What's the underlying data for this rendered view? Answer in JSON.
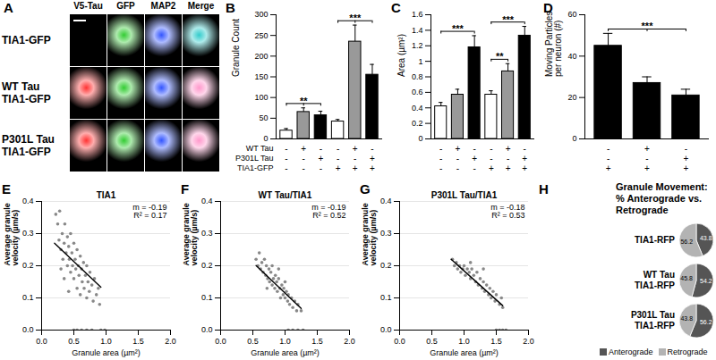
{
  "panel_a": {
    "panel": "A",
    "columns": [
      "V5-Tau",
      "GFP",
      "MAP2",
      "Merge"
    ],
    "rows": [
      "TIA1-GFP",
      "WT Tau TIA1-GFP",
      "P301L Tau TIA1-GFP"
    ]
  },
  "chart_data": [
    {
      "panel": "B",
      "type": "bar",
      "y_label": "Granule Count",
      "categories": [
        null,
        null,
        null,
        null,
        null,
        null
      ],
      "values": [
        20,
        65,
        57,
        42,
        235,
        155
      ],
      "errors": [
        5,
        10,
        10,
        5,
        40,
        25
      ],
      "colors": [
        "#ffffff",
        "#999999",
        "#000000",
        "#ffffff",
        "#999999",
        "#000000"
      ],
      "ylim": [
        0,
        300
      ],
      "yticks": [
        0,
        50,
        100,
        150,
        200,
        250,
        300
      ],
      "tick_labels": "y",
      "conditions": [
        {
          "name": "WT Tau",
          "values": [
            "-",
            "+",
            "-",
            "-",
            "+",
            "-"
          ]
        },
        {
          "name": "P301L Tau",
          "values": [
            "-",
            "-",
            "+",
            "-",
            "-",
            "+"
          ]
        },
        {
          "name": "TIA1-GFP",
          "values": [
            "-",
            "-",
            "-",
            "+",
            "+",
            "+"
          ]
        }
      ],
      "annotations": [
        {
          "text": "**",
          "from": 0,
          "to": [
            1,
            2
          ]
        },
        {
          "text": "***",
          "from": 3,
          "to": [
            4,
            5
          ]
        }
      ]
    },
    {
      "panel": "C",
      "type": "bar",
      "y_label": "Area (µm²)",
      "categories": [
        null,
        null,
        null,
        null,
        null,
        null
      ],
      "values": [
        0.42,
        0.57,
        1.18,
        0.57,
        0.87,
        1.33
      ],
      "errors": [
        0.05,
        0.07,
        0.15,
        0.05,
        0.1,
        0.12
      ],
      "colors": [
        "#ffffff",
        "#999999",
        "#000000",
        "#ffffff",
        "#999999",
        "#000000"
      ],
      "ylim": [
        0,
        1.6
      ],
      "yticks": [
        0,
        0.2,
        0.4,
        0.6,
        0.8,
        1,
        1.2,
        1.4,
        1.6
      ],
      "tick_labels": "y",
      "conditions": [
        {
          "name": null,
          "values": [
            "-",
            "+",
            "-",
            "-",
            "+",
            "-"
          ]
        },
        {
          "name": null,
          "values": [
            "-",
            "-",
            "+",
            "-",
            "-",
            "+"
          ]
        },
        {
          "name": null,
          "values": [
            "-",
            "-",
            "-",
            "+",
            "+",
            "+"
          ]
        }
      ],
      "annotations": [
        {
          "text": "***",
          "from": 0,
          "to": [
            2
          ]
        },
        {
          "text": "**",
          "from": 3,
          "to": [
            4
          ]
        },
        {
          "text": "***",
          "from": 3,
          "to": [
            5
          ]
        }
      ]
    },
    {
      "panel": "D",
      "type": "bar",
      "y_label": "Moving Particles per neuron (#)",
      "categories": [
        null,
        null,
        null
      ],
      "values": [
        45,
        27,
        21
      ],
      "errors": [
        6,
        3,
        3
      ],
      "colors": [
        "#000000",
        "#000000",
        "#000000"
      ],
      "ylim": [
        0,
        60
      ],
      "yticks": [
        0,
        20,
        40,
        60
      ],
      "tick_labels": "y",
      "conditions": [
        {
          "name": null,
          "values": [
            "-",
            "+",
            "-"
          ]
        },
        {
          "name": null,
          "values": [
            "-",
            "-",
            "+"
          ]
        },
        {
          "name": null,
          "values": [
            "+",
            "+",
            "+"
          ]
        }
      ],
      "annotations": [
        {
          "text": "***",
          "from": 0,
          "to": [
            1,
            2
          ]
        }
      ]
    },
    {
      "panel": "E",
      "type": "scatter",
      "title": "TIA1",
      "x_label": "Granule area (µm²)",
      "y_label": "Average granule velocity (µm/s)",
      "x": [
        0.22,
        0.25,
        0.27,
        0.28,
        0.3,
        0.32,
        0.33,
        0.35,
        0.36,
        0.38,
        0.4,
        0.4,
        0.42,
        0.43,
        0.45,
        0.45,
        0.47,
        0.48,
        0.5,
        0.5,
        0.52,
        0.53,
        0.55,
        0.55,
        0.57,
        0.58,
        0.6,
        0.6,
        0.62,
        0.63,
        0.65,
        0.66,
        0.68,
        0.7,
        0.7,
        0.72,
        0.74,
        0.75,
        0.78,
        0.8,
        0.82,
        0.85,
        0.88,
        0.9,
        0.35,
        0.42,
        0.3,
        0.5,
        0.55,
        0.62,
        0.7,
        0.78,
        0.92,
        0.98
      ],
      "values": [
        0.36,
        0.33,
        0.28,
        0.37,
        0.25,
        0.3,
        0.22,
        0.27,
        0.33,
        0.24,
        0.2,
        0.29,
        0.26,
        0.22,
        0.18,
        0.3,
        0.24,
        0.2,
        0.27,
        0.16,
        0.22,
        0.19,
        0.25,
        0.13,
        0.2,
        0.17,
        0.23,
        0.11,
        0.19,
        0.15,
        0.21,
        0.13,
        0.17,
        0.1,
        0.2,
        0.15,
        0.12,
        0.18,
        0.14,
        0.09,
        0.16,
        0.11,
        0.13,
        0.08,
        0.16,
        0.12,
        0.19,
        0,
        0,
        0,
        0,
        0,
        0,
        0
      ],
      "color": "#888888",
      "marker": "circle",
      "xlim": [
        0,
        2
      ],
      "xticks": [
        {
          "value": 0,
          "label": "0.0"
        },
        0.5,
        {
          "value": 1,
          "label": "1.0"
        },
        1.5,
        {
          "value": 2,
          "label": "2.0"
        }
      ],
      "ylim": [
        0,
        0.4
      ],
      "yticks": [
        {
          "value": 0,
          "label": "0.0"
        },
        0.1,
        0.2,
        0.3,
        0.4
      ],
      "grid": true,
      "annotations": [
        "m = -0.19",
        "R² = 0.17"
      ],
      "fit": {
        "slope": -0.19,
        "intercept": 0.308,
        "x": [
          0.2,
          0.92
        ]
      }
    },
    {
      "panel": "F",
      "type": "scatter",
      "title": "WT Tau/TIA1",
      "x_label": "Granule area (µm²)",
      "y_label": "Average granule velocity (µm/s)",
      "x": [
        0.55,
        0.58,
        0.6,
        0.62,
        0.64,
        0.66,
        0.68,
        0.7,
        0.71,
        0.73,
        0.75,
        0.76,
        0.78,
        0.8,
        0.8,
        0.82,
        0.84,
        0.85,
        0.87,
        0.88,
        0.9,
        0.92,
        0.93,
        0.95,
        0.97,
        0.98,
        1.0,
        1.02,
        1.04,
        1.05,
        1.07,
        1.1,
        1.12,
        1.15,
        1.18,
        1.2,
        1.25,
        0.72,
        0.9,
        1.0,
        1.05,
        1.12,
        1.2,
        1.28
      ],
      "values": [
        0.22,
        0.2,
        0.24,
        0.19,
        0.21,
        0.18,
        0.22,
        0.17,
        0.2,
        0.16,
        0.19,
        0.15,
        0.18,
        0.14,
        0.2,
        0.16,
        0.13,
        0.17,
        0.15,
        0.12,
        0.16,
        0.13,
        0.1,
        0.14,
        0.11,
        0.13,
        0.1,
        0.12,
        0.09,
        0.11,
        0.08,
        0.1,
        0.07,
        0.09,
        0.06,
        0.08,
        0.06,
        0.13,
        0.19,
        0.15,
        0,
        0,
        0,
        0
      ],
      "color": "#888888",
      "marker": "circle",
      "xlim": [
        0,
        2
      ],
      "xticks": [
        {
          "value": 0,
          "label": "0.0"
        },
        0.5,
        {
          "value": 1,
          "label": "1.0"
        },
        1.5,
        {
          "value": 2,
          "label": "2.0"
        }
      ],
      "ylim": [
        0,
        0.4
      ],
      "yticks": [
        {
          "value": 0,
          "label": "0.0"
        },
        0.1,
        0.2,
        0.3,
        0.4
      ],
      "grid": true,
      "annotations": [
        "m = -0.19",
        "R² = 0.52"
      ],
      "fit": {
        "slope": -0.19,
        "intercept": 0.305,
        "x": [
          0.55,
          1.25
        ]
      }
    },
    {
      "panel": "G",
      "type": "scatter",
      "title": "P301L Tau/TIA1",
      "x_label": "Granule area (µm²)",
      "y_label": "Average granule velocity (µm/s)",
      "x": [
        0.82,
        0.85,
        0.88,
        0.9,
        0.93,
        0.95,
        0.98,
        1.0,
        1.02,
        1.05,
        1.08,
        1.1,
        1.12,
        1.15,
        1.18,
        1.2,
        1.22,
        1.25,
        1.28,
        1.3,
        1.32,
        1.35,
        1.38,
        1.4,
        1.42,
        1.45,
        1.48,
        1.5,
        1.55,
        1.58,
        1.6,
        1.3,
        1.1,
        1.5,
        1.55,
        1.6,
        1.65
      ],
      "values": [
        0.22,
        0.2,
        0.21,
        0.19,
        0.2,
        0.18,
        0.19,
        0.2,
        0.17,
        0.19,
        0.18,
        0.16,
        0.19,
        0.17,
        0.15,
        0.18,
        0.14,
        0.16,
        0.13,
        0.15,
        0.12,
        0.14,
        0.11,
        0.13,
        0.1,
        0.12,
        0.09,
        0.11,
        0.08,
        0.1,
        0.07,
        0.19,
        0.21,
        0,
        0,
        0,
        0
      ],
      "color": "#888888",
      "marker": "circle",
      "xlim": [
        0,
        2
      ],
      "xticks": [
        {
          "value": 0,
          "label": "0.0"
        },
        0.5,
        {
          "value": 1,
          "label": "1.0"
        },
        1.5,
        {
          "value": 2,
          "label": "2.0"
        }
      ],
      "ylim": [
        0,
        0.4
      ],
      "yticks": [
        {
          "value": 0,
          "label": "0.0"
        },
        0.1,
        0.2,
        0.3,
        0.4
      ],
      "grid": true,
      "annotations": [
        "m = -0.18",
        "R² = 0.53"
      ],
      "fit": {
        "slope": -0.18,
        "intercept": 0.364,
        "x": [
          0.8,
          1.6
        ]
      }
    },
    {
      "panel": "H",
      "type": "pie",
      "title": "Granule Movement: % Anterograde vs. Retrograde",
      "categories": [
        "Anterograde",
        "Retrograde"
      ],
      "colors": [
        "#555555",
        "#b3b3b3"
      ],
      "pies": [
        {
          "label": "TIA1-RFP",
          "values": [
            43.8,
            56.2
          ]
        },
        {
          "label": "WT Tau TIA1-RFP",
          "values": [
            54.2,
            45.8
          ]
        },
        {
          "label": "P301L Tau TIA1-RFP",
          "values": [
            56.2,
            43.8
          ]
        }
      ],
      "data_labels": true,
      "legend": "bottom"
    }
  ]
}
